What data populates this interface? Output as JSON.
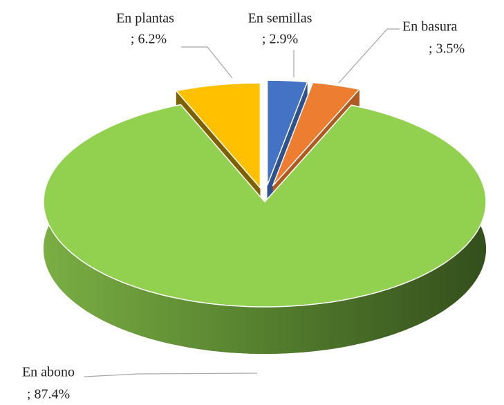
{
  "chart_data": {
    "type": "pie3d",
    "categories": [
      "En plantas",
      "En semillas",
      "En basura",
      "En abono"
    ],
    "values": [
      6.2,
      2.9,
      3.5,
      87.4
    ],
    "value_labels": [
      "; 6.2%",
      "; 2.9%",
      "; 3.5%",
      "; 87.4%"
    ],
    "colors": [
      "#ffc000",
      "#4472c4",
      "#ed7d31",
      "#92d050"
    ],
    "side_colors": [
      "#7f6000",
      "#2f528f",
      "#ae5a21",
      "#4e7a2a"
    ]
  }
}
